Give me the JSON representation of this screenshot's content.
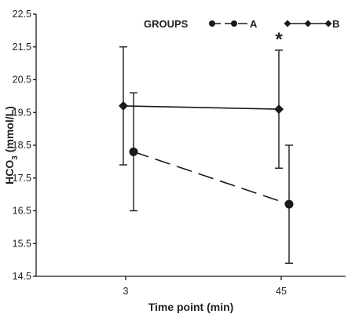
{
  "chart_data": {
    "type": "line",
    "xlabel": "Time point (min)",
    "ylabel_main": "HCO",
    "ylabel_sub": "3",
    "ylabel_unit": " (mmol/L)",
    "categories": [
      "3",
      "45"
    ],
    "ylim": [
      14.5,
      22.5
    ],
    "yticks": [
      "14.5",
      "15.5",
      "16.5",
      "17.5",
      "18.5",
      "19.5",
      "20.5",
      "21.5",
      "22.5"
    ],
    "grid": false,
    "legend": {
      "title": "GROUPS",
      "placement": "top"
    },
    "series": [
      {
        "name": "A",
        "line_style": "dashed",
        "marker": "circle",
        "values": [
          18.3,
          16.7
        ],
        "err_low": [
          16.5,
          14.9
        ],
        "err_high": [
          20.1,
          18.5
        ]
      },
      {
        "name": "B",
        "line_style": "solid",
        "marker": "diamond",
        "values": [
          19.7,
          19.6
        ],
        "err_low": [
          17.9,
          17.8
        ],
        "err_high": [
          21.5,
          21.4
        ]
      }
    ],
    "annotations": [
      {
        "text": "*",
        "x": "45"
      }
    ]
  }
}
